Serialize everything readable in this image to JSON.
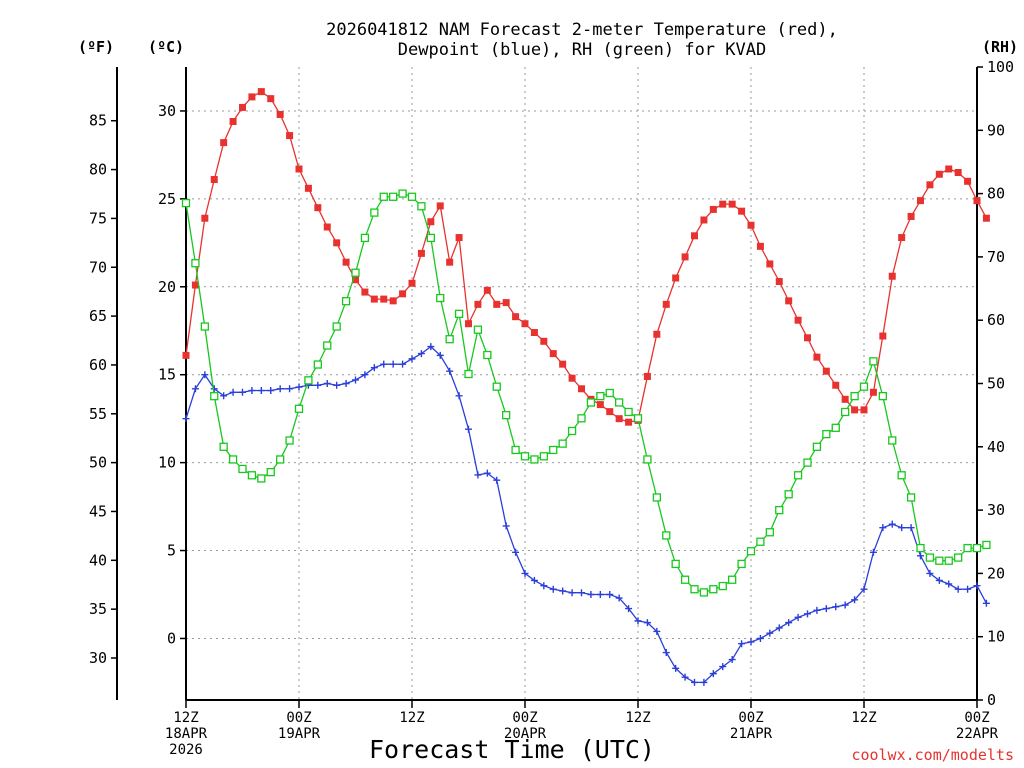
{
  "chart_data": {
    "type": "line",
    "title_line1": "2026041812 NAM Forecast 2-meter Temperature (red),",
    "title_line2": "Dewpoint (blue), RH (green) for KVAD",
    "xlabel": "Forecast Time (UTC)",
    "credit": "coolwx.com/modelts",
    "units": {
      "fahrenheit": "(ºF)",
      "celsius": "(ºC)",
      "rh": "(RH)"
    },
    "xlim_hours": [
      0,
      84
    ],
    "ylim_celsius": [
      -3.5,
      32.5
    ],
    "ylim_rh": [
      0,
      100
    ],
    "x_ticks": [
      {
        "hour": 0,
        "lines": [
          "12Z",
          "18APR",
          "2026"
        ]
      },
      {
        "hour": 12,
        "lines": [
          "00Z",
          "19APR"
        ]
      },
      {
        "hour": 24,
        "lines": [
          "12Z"
        ]
      },
      {
        "hour": 36,
        "lines": [
          "00Z",
          "20APR"
        ]
      },
      {
        "hour": 48,
        "lines": [
          "12Z"
        ]
      },
      {
        "hour": 60,
        "lines": [
          "00Z",
          "21APR"
        ]
      },
      {
        "hour": 72,
        "lines": [
          "12Z"
        ]
      },
      {
        "hour": 84,
        "lines": [
          "00Z",
          "22APR"
        ]
      }
    ],
    "celsius_ticks": [
      0,
      5,
      10,
      15,
      20,
      25,
      30
    ],
    "fahrenheit_ticks": [
      30,
      35,
      40,
      45,
      50,
      55,
      60,
      65,
      70,
      75,
      80,
      85
    ],
    "rh_ticks": [
      0,
      10,
      20,
      30,
      40,
      50,
      60,
      70,
      80,
      90,
      100
    ],
    "series": [
      {
        "name": "2-meter Temperature",
        "unit": "C",
        "axis": "celsius",
        "color": "#e8322f",
        "marker": "filled-square",
        "start_hour": 0,
        "step_hours": 1,
        "values": [
          16.1,
          20.1,
          23.9,
          26.1,
          28.2,
          29.4,
          30.2,
          30.8,
          31.1,
          30.7,
          29.8,
          28.6,
          26.7,
          25.6,
          24.5,
          23.4,
          22.5,
          21.4,
          20.4,
          19.7,
          19.3,
          19.3,
          19.2,
          19.6,
          20.2,
          21.9,
          23.7,
          24.6,
          21.4,
          22.8,
          17.9,
          19.0,
          19.8,
          19.0,
          19.1,
          18.3,
          17.9,
          17.4,
          16.9,
          16.2,
          15.6,
          14.8,
          14.2,
          13.6,
          13.3,
          12.9,
          12.5,
          12.3,
          12.4,
          14.9,
          17.3,
          19.0,
          20.5,
          21.7,
          22.9,
          23.8,
          24.4,
          24.7,
          24.7,
          24.3,
          23.5,
          22.3,
          21.3,
          20.3,
          19.2,
          18.1,
          17.1,
          16.0,
          15.2,
          14.4,
          13.6,
          13.0,
          13.0,
          14.0,
          17.2,
          20.6,
          22.8,
          24.0,
          24.9,
          25.8,
          26.4,
          26.7,
          26.5,
          26.0,
          24.9,
          23.9
        ]
      },
      {
        "name": "Dewpoint",
        "unit": "C",
        "axis": "celsius",
        "color": "#2b3fd9",
        "marker": "plus",
        "start_hour": 0,
        "step_hours": 1,
        "values": [
          12.5,
          14.2,
          15.0,
          14.2,
          13.8,
          14.0,
          14.0,
          14.1,
          14.1,
          14.1,
          14.2,
          14.2,
          14.3,
          14.4,
          14.4,
          14.5,
          14.4,
          14.5,
          14.7,
          15.0,
          15.4,
          15.6,
          15.6,
          15.6,
          15.9,
          16.2,
          16.6,
          16.1,
          15.2,
          13.8,
          11.9,
          9.3,
          9.4,
          9.0,
          6.4,
          4.9,
          3.7,
          3.3,
          3.0,
          2.8,
          2.7,
          2.6,
          2.6,
          2.5,
          2.5,
          2.5,
          2.3,
          1.7,
          1.0,
          0.9,
          0.4,
          -0.8,
          -1.7,
          -2.2,
          -2.5,
          -2.5,
          -2.0,
          -1.6,
          -1.2,
          -0.3,
          -0.2,
          0.0,
          0.3,
          0.6,
          0.9,
          1.2,
          1.4,
          1.6,
          1.7,
          1.8,
          1.9,
          2.2,
          2.8,
          4.9,
          6.3,
          6.5,
          6.3,
          6.3,
          4.7,
          3.7,
          3.3,
          3.1,
          2.8,
          2.8,
          3.0,
          2.0
        ]
      },
      {
        "name": "RH",
        "unit": "%",
        "axis": "rh",
        "color": "#18c81e",
        "marker": "open-square",
        "start_hour": 0,
        "step_hours": 1,
        "values": [
          78.5,
          69.0,
          59.0,
          48.0,
          40.0,
          38.0,
          36.5,
          35.5,
          35.0,
          36.0,
          38.0,
          41.0,
          46.0,
          50.5,
          53.0,
          56.0,
          59.0,
          63.0,
          67.5,
          73.0,
          77.0,
          79.5,
          79.5,
          80.0,
          79.5,
          78.0,
          73.0,
          63.5,
          57.0,
          61.0,
          51.5,
          58.5,
          54.5,
          49.5,
          45.0,
          39.5,
          38.5,
          38.0,
          38.5,
          39.5,
          40.5,
          42.5,
          44.5,
          47.0,
          48.0,
          48.5,
          47.0,
          45.5,
          44.5,
          38.0,
          32.0,
          26.0,
          21.5,
          19.0,
          17.5,
          17.0,
          17.5,
          18.0,
          19.0,
          21.5,
          23.5,
          25.0,
          26.5,
          30.0,
          32.5,
          35.5,
          37.5,
          40.0,
          42.0,
          43.0,
          45.5,
          48.0,
          49.5,
          53.5,
          48.0,
          41.0,
          35.5,
          32.0,
          24.0,
          22.5,
          22.0,
          22.0,
          22.5,
          24.0,
          24.0,
          24.5
        ]
      }
    ]
  }
}
